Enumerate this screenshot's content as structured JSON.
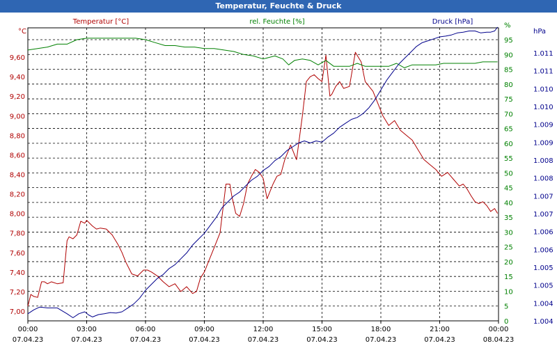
{
  "window": {
    "title": "Temperatur, Feuchte & Druck"
  },
  "chart_data": {
    "type": "line",
    "title": "Temperatur, Feuchte & Druck",
    "x_ticks": [
      {
        "time": "00:00",
        "date": "07.04.23"
      },
      {
        "time": "03:00",
        "date": "07.04.23"
      },
      {
        "time": "06:00",
        "date": "07.04.23"
      },
      {
        "time": "09:00",
        "date": "07.04.23"
      },
      {
        "time": "12:00",
        "date": "07.04.23"
      },
      {
        "time": "15:00",
        "date": "07.04.23"
      },
      {
        "time": "18:00",
        "date": "07.04.23"
      },
      {
        "time": "21:00",
        "date": "07.04.23"
      },
      {
        "time": "00:00",
        "date": "08.04.23"
      }
    ],
    "x_range_hours": [
      0,
      24
    ],
    "axes": {
      "temp": {
        "label": "Temperatur [°C]",
        "unit": "°C",
        "range": [
          6.9,
          9.9
        ],
        "color": "#b00000",
        "ticks": [
          "7,00",
          "7,20",
          "7,40",
          "7,60",
          "7,80",
          "8,00",
          "8,20",
          "8,40",
          "8,60",
          "8,80",
          "9,00",
          "9,20",
          "9,40",
          "9,60"
        ]
      },
      "hum": {
        "label": "rel. Feuchte [%]",
        "unit": "%",
        "range": [
          0,
          99
        ],
        "color": "#008000",
        "ticks": [
          "0",
          "5",
          "10",
          "15",
          "20",
          "25",
          "30",
          "35",
          "40",
          "45",
          "50",
          "55",
          "60",
          "65",
          "70",
          "75",
          "80",
          "85",
          "90",
          "95",
          "%"
        ]
      },
      "press": {
        "label": "Druck [hPa]",
        "unit": "hPa",
        "range": [
          1003.87,
          1011.33
        ],
        "color": "#00008b",
        "ticks": [
          "1.004",
          "1.004",
          "1.005",
          "1.005",
          "1.006",
          "1.006",
          "1.007",
          "1.007",
          "1.008",
          "1.008",
          "1.009",
          "1.009",
          "1.010",
          "1.010",
          "1.011",
          "1.011"
        ]
      }
    },
    "series": [
      {
        "name": "Temperatur [°C]",
        "axis": "temp",
        "color": "#b00000",
        "x": [
          0,
          0.15,
          0.3,
          0.5,
          0.7,
          0.85,
          1.0,
          1.2,
          1.5,
          1.8,
          2.0,
          2.1,
          2.3,
          2.5,
          2.7,
          2.9,
          3.0,
          3.1,
          3.3,
          3.5,
          3.7,
          4.0,
          4.3,
          4.6,
          4.8,
          5.0,
          5.3,
          5.6,
          5.9,
          6.1,
          6.3,
          6.6,
          6.9,
          7.2,
          7.5,
          7.8,
          8.1,
          8.4,
          8.6,
          8.8,
          9.0,
          9.2,
          9.5,
          9.8,
          10.1,
          10.3,
          10.4,
          10.6,
          10.8,
          11.0,
          11.2,
          11.4,
          11.6,
          11.8,
          12.0,
          12.2,
          12.5,
          12.7,
          12.9,
          13.1,
          13.4,
          13.7,
          14.0,
          14.2,
          14.4,
          14.6,
          14.8,
          15.0,
          15.2,
          15.4,
          15.5,
          15.7,
          15.9,
          16.1,
          16.4,
          16.7,
          17.0,
          17.2,
          17.4,
          17.6,
          17.8,
          18.1,
          18.4,
          18.7,
          19.0,
          19.3,
          19.6,
          19.9,
          20.2,
          20.5,
          20.8,
          21.1,
          21.4,
          21.7,
          22.0,
          22.2,
          22.4,
          22.6,
          22.8,
          23.0,
          23.2,
          23.4,
          23.6,
          23.8,
          23.95
        ],
        "values": [
          7.05,
          7.17,
          7.15,
          7.14,
          7.3,
          7.3,
          7.28,
          7.3,
          7.28,
          7.29,
          7.72,
          7.76,
          7.74,
          7.78,
          7.92,
          7.9,
          7.93,
          7.91,
          7.87,
          7.84,
          7.85,
          7.84,
          7.78,
          7.68,
          7.6,
          7.5,
          7.38,
          7.36,
          7.42,
          7.42,
          7.4,
          7.36,
          7.3,
          7.25,
          7.28,
          7.2,
          7.25,
          7.18,
          7.2,
          7.34,
          7.4,
          7.5,
          7.65,
          7.8,
          8.3,
          8.3,
          8.18,
          8.0,
          7.97,
          8.1,
          8.3,
          8.38,
          8.45,
          8.42,
          8.36,
          8.15,
          8.3,
          8.38,
          8.4,
          8.55,
          8.7,
          8.55,
          9.0,
          9.35,
          9.4,
          9.42,
          9.38,
          9.35,
          9.62,
          9.2,
          9.22,
          9.3,
          9.35,
          9.28,
          9.3,
          9.65,
          9.55,
          9.35,
          9.3,
          9.25,
          9.15,
          9.0,
          8.9,
          8.95,
          8.85,
          8.8,
          8.75,
          8.65,
          8.55,
          8.5,
          8.45,
          8.38,
          8.42,
          8.35,
          8.28,
          8.3,
          8.25,
          8.18,
          8.12,
          8.1,
          8.12,
          8.08,
          8.02,
          8.05,
          8.0
        ]
      },
      {
        "name": "rel. Feuchte [%]",
        "axis": "hum",
        "color": "#008000",
        "x": [
          0,
          0.5,
          1.0,
          1.5,
          2.0,
          2.5,
          3.0,
          3.5,
          4.0,
          4.5,
          5.0,
          5.5,
          6.0,
          6.5,
          7.0,
          7.5,
          8.0,
          8.5,
          9.0,
          9.5,
          10.0,
          10.5,
          11.0,
          11.5,
          12.0,
          12.3,
          12.6,
          13.0,
          13.3,
          13.6,
          14.0,
          14.4,
          14.8,
          15.2,
          15.6,
          16.0,
          16.4,
          16.8,
          17.2,
          17.6,
          18.0,
          18.4,
          18.8,
          19.2,
          19.6,
          20.0,
          20.4,
          20.8,
          21.2,
          21.6,
          22.0,
          22.4,
          22.8,
          23.2,
          23.6,
          23.95
        ],
        "values": [
          91.5,
          92,
          92.5,
          93.5,
          93.5,
          95,
          95.5,
          95.5,
          95.5,
          95.5,
          95.5,
          95.5,
          95,
          94,
          93,
          93,
          92.5,
          92.5,
          92,
          92,
          91.5,
          91,
          90,
          89.5,
          88.5,
          89,
          89.5,
          88.5,
          86.5,
          88,
          88.5,
          88,
          86.5,
          88,
          86,
          86,
          86,
          87,
          86,
          86,
          86,
          86,
          87,
          85.5,
          86.5,
          86.5,
          86.5,
          86.5,
          87,
          87,
          87,
          87,
          87,
          87.5,
          87.5,
          87.5
        ]
      },
      {
        "name": "Druck [hPa]",
        "axis": "press",
        "color": "#00008b",
        "x": [
          0,
          0.3,
          0.6,
          1.0,
          1.5,
          2.0,
          2.3,
          2.6,
          2.9,
          3.1,
          3.3,
          3.6,
          3.9,
          4.2,
          4.5,
          4.8,
          5.1,
          5.4,
          5.7,
          6.0,
          6.3,
          6.6,
          6.9,
          7.2,
          7.5,
          7.8,
          8.1,
          8.4,
          8.7,
          9.0,
          9.3,
          9.6,
          9.9,
          10.2,
          10.5,
          10.8,
          11.1,
          11.4,
          11.7,
          12.0,
          12.3,
          12.6,
          12.9,
          13.2,
          13.5,
          13.8,
          14.1,
          14.4,
          14.7,
          15.0,
          15.3,
          15.6,
          15.9,
          16.2,
          16.5,
          16.8,
          17.1,
          17.4,
          17.7,
          18.0,
          18.3,
          18.6,
          18.9,
          19.2,
          19.5,
          19.8,
          20.1,
          20.4,
          20.7,
          21.0,
          21.3,
          21.6,
          21.9,
          22.2,
          22.5,
          22.8,
          23.1,
          23.4,
          23.6,
          23.8,
          23.95
        ],
        "values": [
          1004.05,
          1004.15,
          1004.22,
          1004.2,
          1004.2,
          1004.05,
          1003.95,
          1004.05,
          1004.1,
          1004.02,
          1003.97,
          1004.03,
          1004.05,
          1004.08,
          1004.07,
          1004.1,
          1004.2,
          1004.3,
          1004.45,
          1004.65,
          1004.8,
          1004.95,
          1005.05,
          1005.2,
          1005.3,
          1005.45,
          1005.6,
          1005.8,
          1005.95,
          1006.1,
          1006.3,
          1006.5,
          1006.75,
          1006.9,
          1007.05,
          1007.15,
          1007.3,
          1007.45,
          1007.55,
          1007.7,
          1007.8,
          1007.95,
          1008.05,
          1008.2,
          1008.3,
          1008.4,
          1008.45,
          1008.4,
          1008.45,
          1008.42,
          1008.55,
          1008.65,
          1008.8,
          1008.9,
          1009.0,
          1009.05,
          1009.15,
          1009.3,
          1009.5,
          1009.75,
          1010.0,
          1010.2,
          1010.4,
          1010.55,
          1010.7,
          1010.85,
          1010.95,
          1011.0,
          1011.05,
          1011.1,
          1011.12,
          1011.15,
          1011.2,
          1011.22,
          1011.25,
          1011.25,
          1011.2,
          1011.22,
          1011.22,
          1011.25,
          1011.35
        ]
      }
    ]
  }
}
